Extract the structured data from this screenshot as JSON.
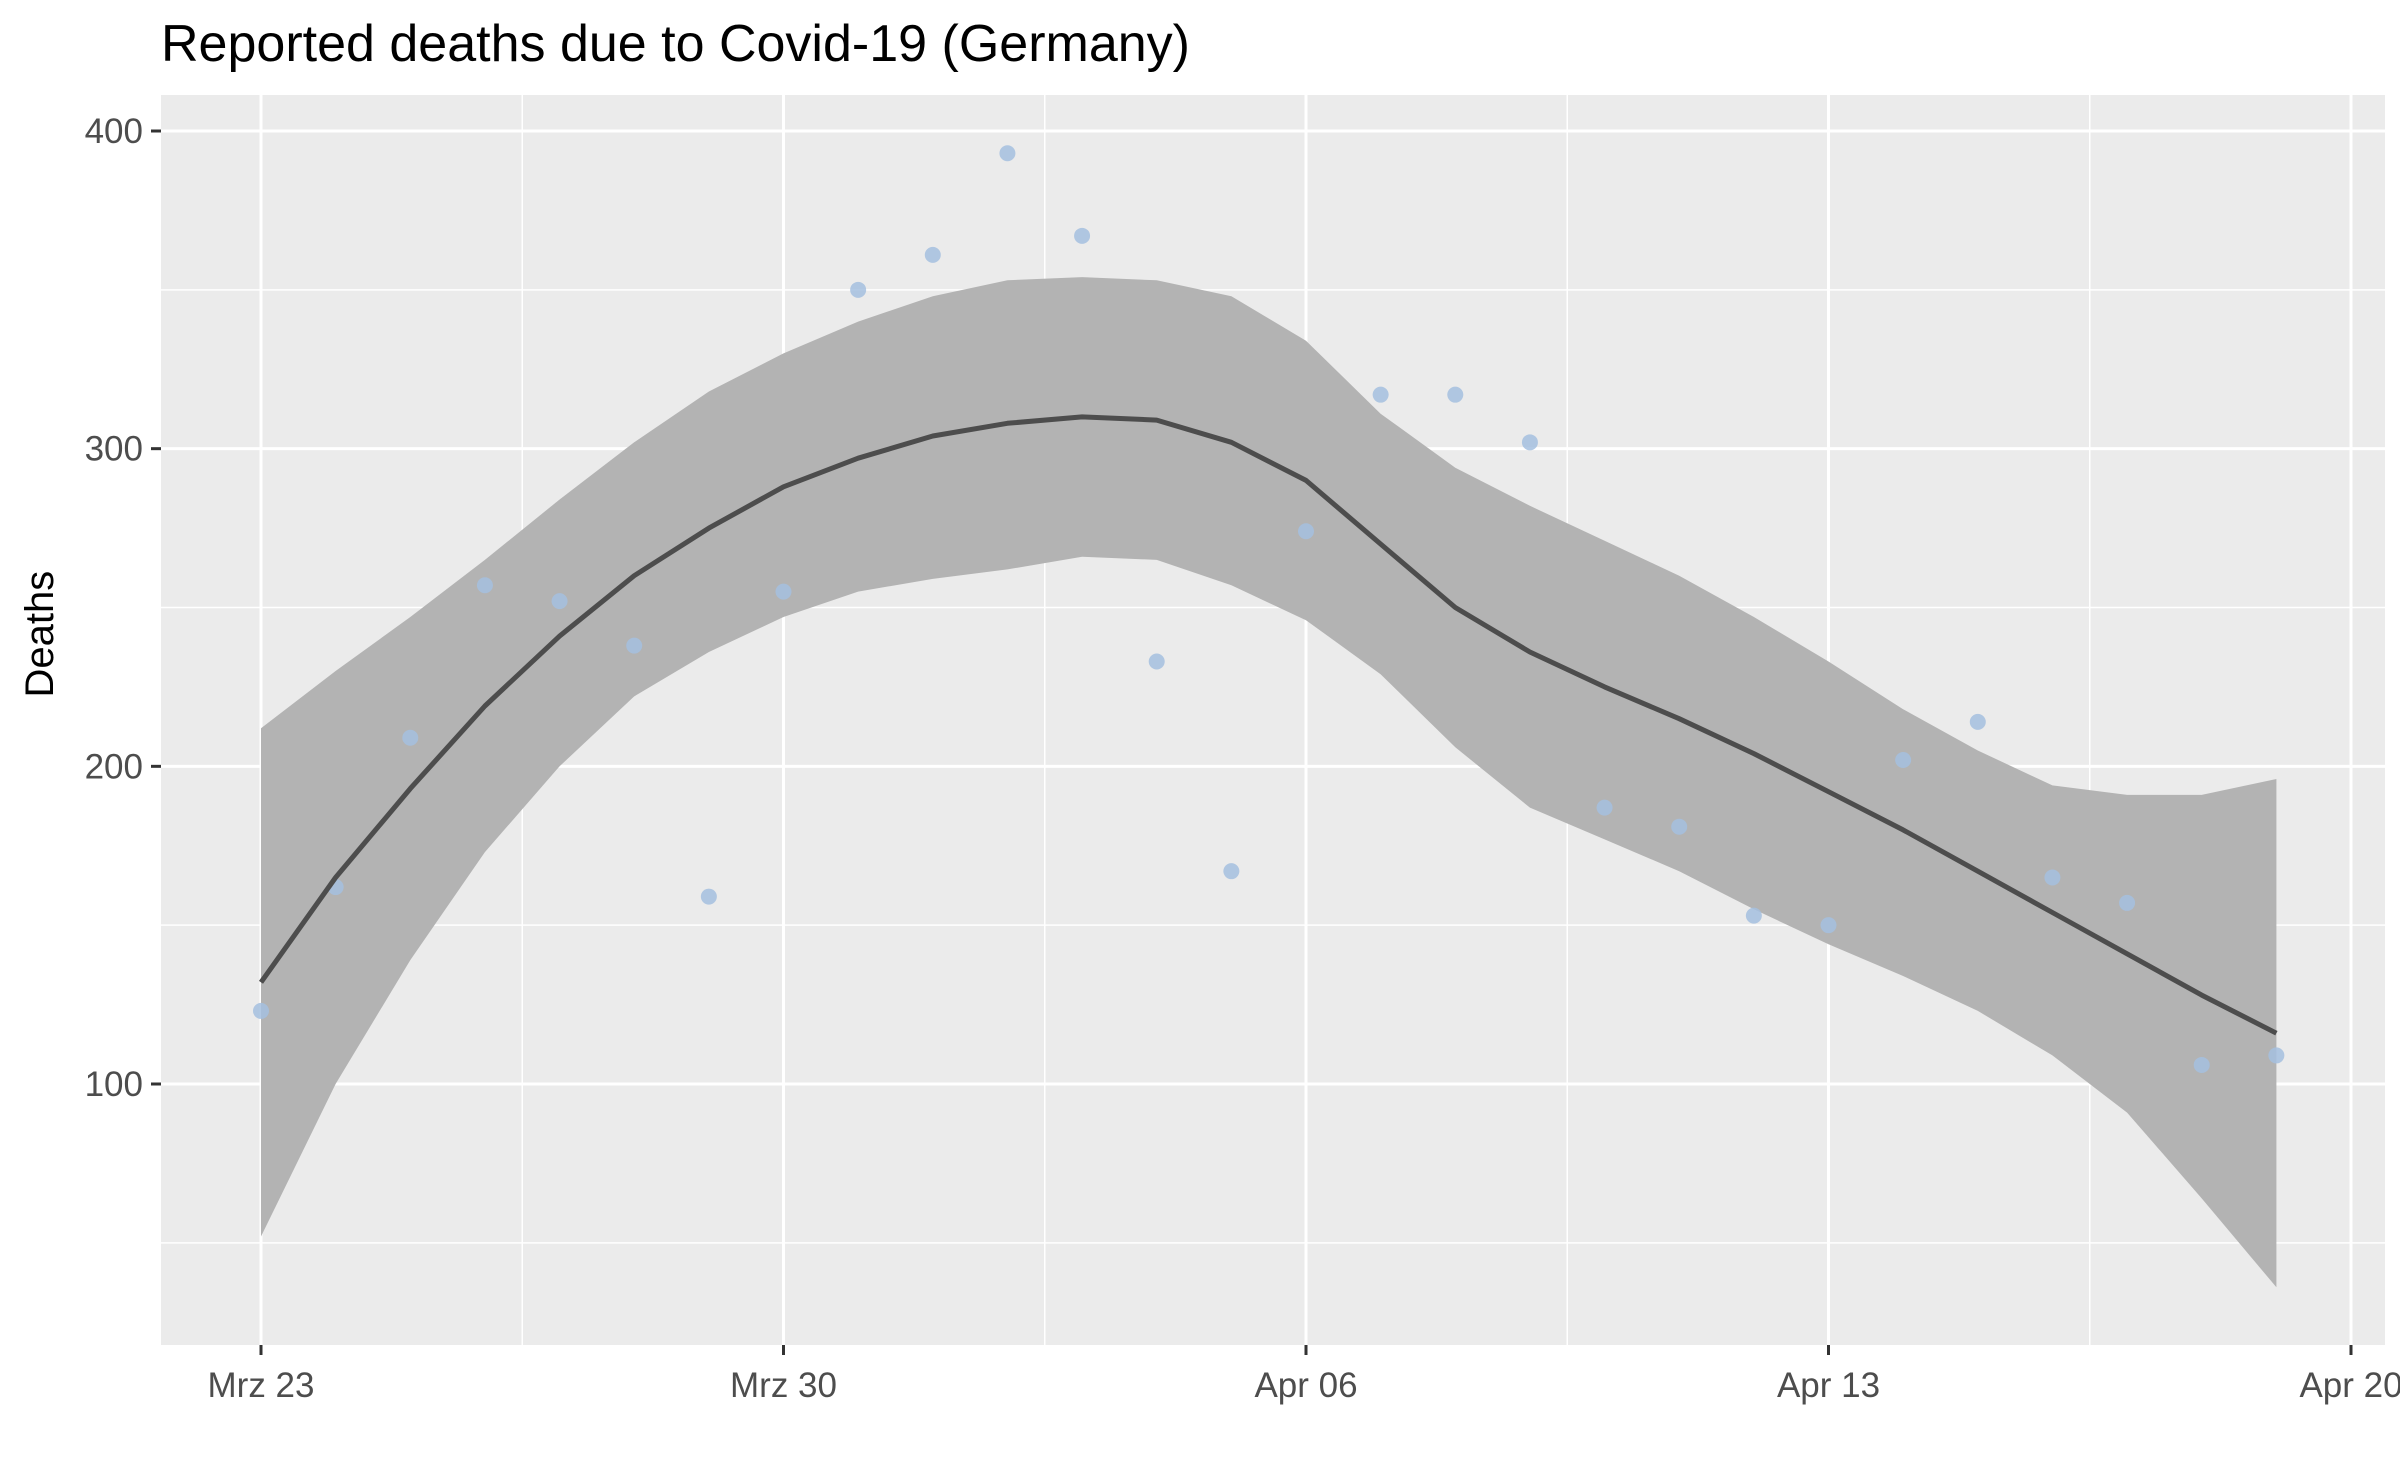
{
  "chart_data": {
    "type": "scatter",
    "title": "Reported deaths due to Covid-19 (Germany)",
    "xlabel": "",
    "ylabel": "Deaths",
    "x_ticks": [
      {
        "date": "2020-03-23",
        "label": "Mrz 23"
      },
      {
        "date": "2020-03-30",
        "label": "Mrz 30"
      },
      {
        "date": "2020-04-06",
        "label": "Apr 06"
      },
      {
        "date": "2020-04-13",
        "label": "Apr 13"
      },
      {
        "date": "2020-04-20",
        "label": "Apr 20"
      }
    ],
    "y_ticks": [
      100,
      200,
      300,
      400
    ],
    "xlim": [
      "2020-03-21",
      "2020-04-20"
    ],
    "ylim": [
      20,
      410
    ],
    "grid": true,
    "background": "#ebebeb",
    "point_color": "#a4bfdf",
    "smooth_color": "#4d4d4d",
    "ribbon_color": "#b3b3b3",
    "series": [
      {
        "type": "points",
        "x": [
          "2020-03-23",
          "2020-03-24",
          "2020-03-25",
          "2020-03-26",
          "2020-03-27",
          "2020-03-28",
          "2020-03-29",
          "2020-03-30",
          "2020-03-31",
          "2020-04-01",
          "2020-04-02",
          "2020-04-03",
          "2020-04-04",
          "2020-04-05",
          "2020-04-06",
          "2020-04-07",
          "2020-04-08",
          "2020-04-09",
          "2020-04-10",
          "2020-04-11",
          "2020-04-12",
          "2020-04-13",
          "2020-04-14",
          "2020-04-15",
          "2020-04-16",
          "2020-04-17",
          "2020-04-18",
          "2020-04-19"
        ],
        "y": [
          123,
          162,
          209,
          257,
          252,
          238,
          159,
          255,
          350,
          361,
          393,
          367,
          233,
          167,
          274,
          317,
          317,
          302,
          187,
          181,
          153,
          150,
          202,
          214,
          165,
          157,
          106,
          109
        ]
      },
      {
        "type": "smooth",
        "x": [
          "2020-03-23",
          "2020-03-24",
          "2020-03-25",
          "2020-03-26",
          "2020-03-27",
          "2020-03-28",
          "2020-03-29",
          "2020-03-30",
          "2020-03-31",
          "2020-04-01",
          "2020-04-02",
          "2020-04-03",
          "2020-04-04",
          "2020-04-05",
          "2020-04-06",
          "2020-04-07",
          "2020-04-08",
          "2020-04-09",
          "2020-04-10",
          "2020-04-11",
          "2020-04-12",
          "2020-04-13",
          "2020-04-14",
          "2020-04-15",
          "2020-04-16",
          "2020-04-17",
          "2020-04-18",
          "2020-04-19"
        ],
        "y": [
          132,
          165,
          193,
          219,
          241,
          260,
          275,
          288,
          297,
          304,
          308,
          310,
          309,
          302,
          290,
          270,
          250,
          236,
          225,
          215,
          204,
          192,
          180,
          167,
          154,
          141,
          128,
          116
        ],
        "lower": [
          52,
          100,
          139,
          173,
          200,
          222,
          236,
          247,
          255,
          259,
          262,
          266,
          265,
          257,
          246,
          229,
          206,
          187,
          177,
          167,
          155,
          144,
          134,
          123,
          109,
          91,
          64,
          36
        ],
        "upper": [
          212,
          230,
          247,
          265,
          284,
          302,
          318,
          330,
          340,
          348,
          353,
          354,
          353,
          348,
          334,
          311,
          294,
          282,
          271,
          260,
          247,
          233,
          218,
          205,
          194,
          191,
          191,
          196
        ]
      }
    ]
  }
}
